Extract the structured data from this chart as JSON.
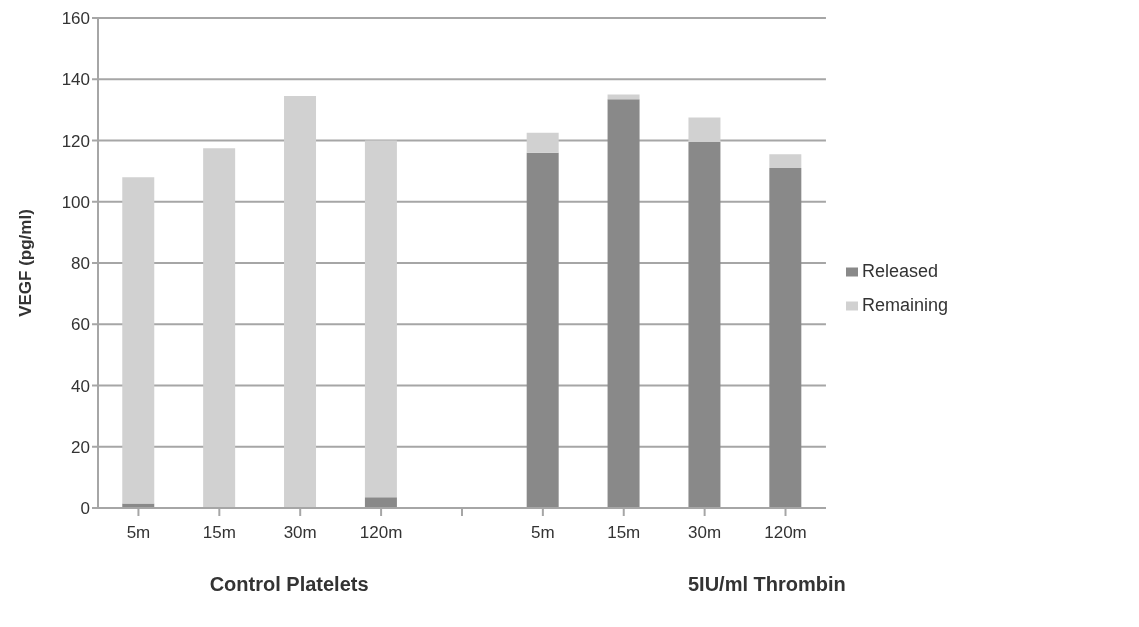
{
  "chart_data": {
    "type": "bar",
    "stacked": true,
    "ylabel": "VEGF (pg/ml)",
    "categories": [
      "5m",
      "15m",
      "30m",
      "120m",
      null,
      "5m",
      "15m",
      "30m",
      "120m"
    ],
    "series": [
      {
        "name": "Released",
        "color": "#898989",
        "values": [
          1.5,
          0,
          0,
          3.5,
          null,
          116,
          133.5,
          119.5,
          111
        ]
      },
      {
        "name": "Remaining",
        "color": "#d1d1d1",
        "values": [
          106.5,
          117.5,
          134.5,
          116.5,
          null,
          6.5,
          1.5,
          8,
          4.5
        ]
      }
    ],
    "ylim": [
      0,
      160
    ],
    "yticks": [
      0,
      20,
      40,
      60,
      80,
      100,
      120,
      140,
      160
    ],
    "grid": "y",
    "legend": "right",
    "annotations": [
      "Control Platelets",
      "5IU/ml Thrombin"
    ]
  }
}
